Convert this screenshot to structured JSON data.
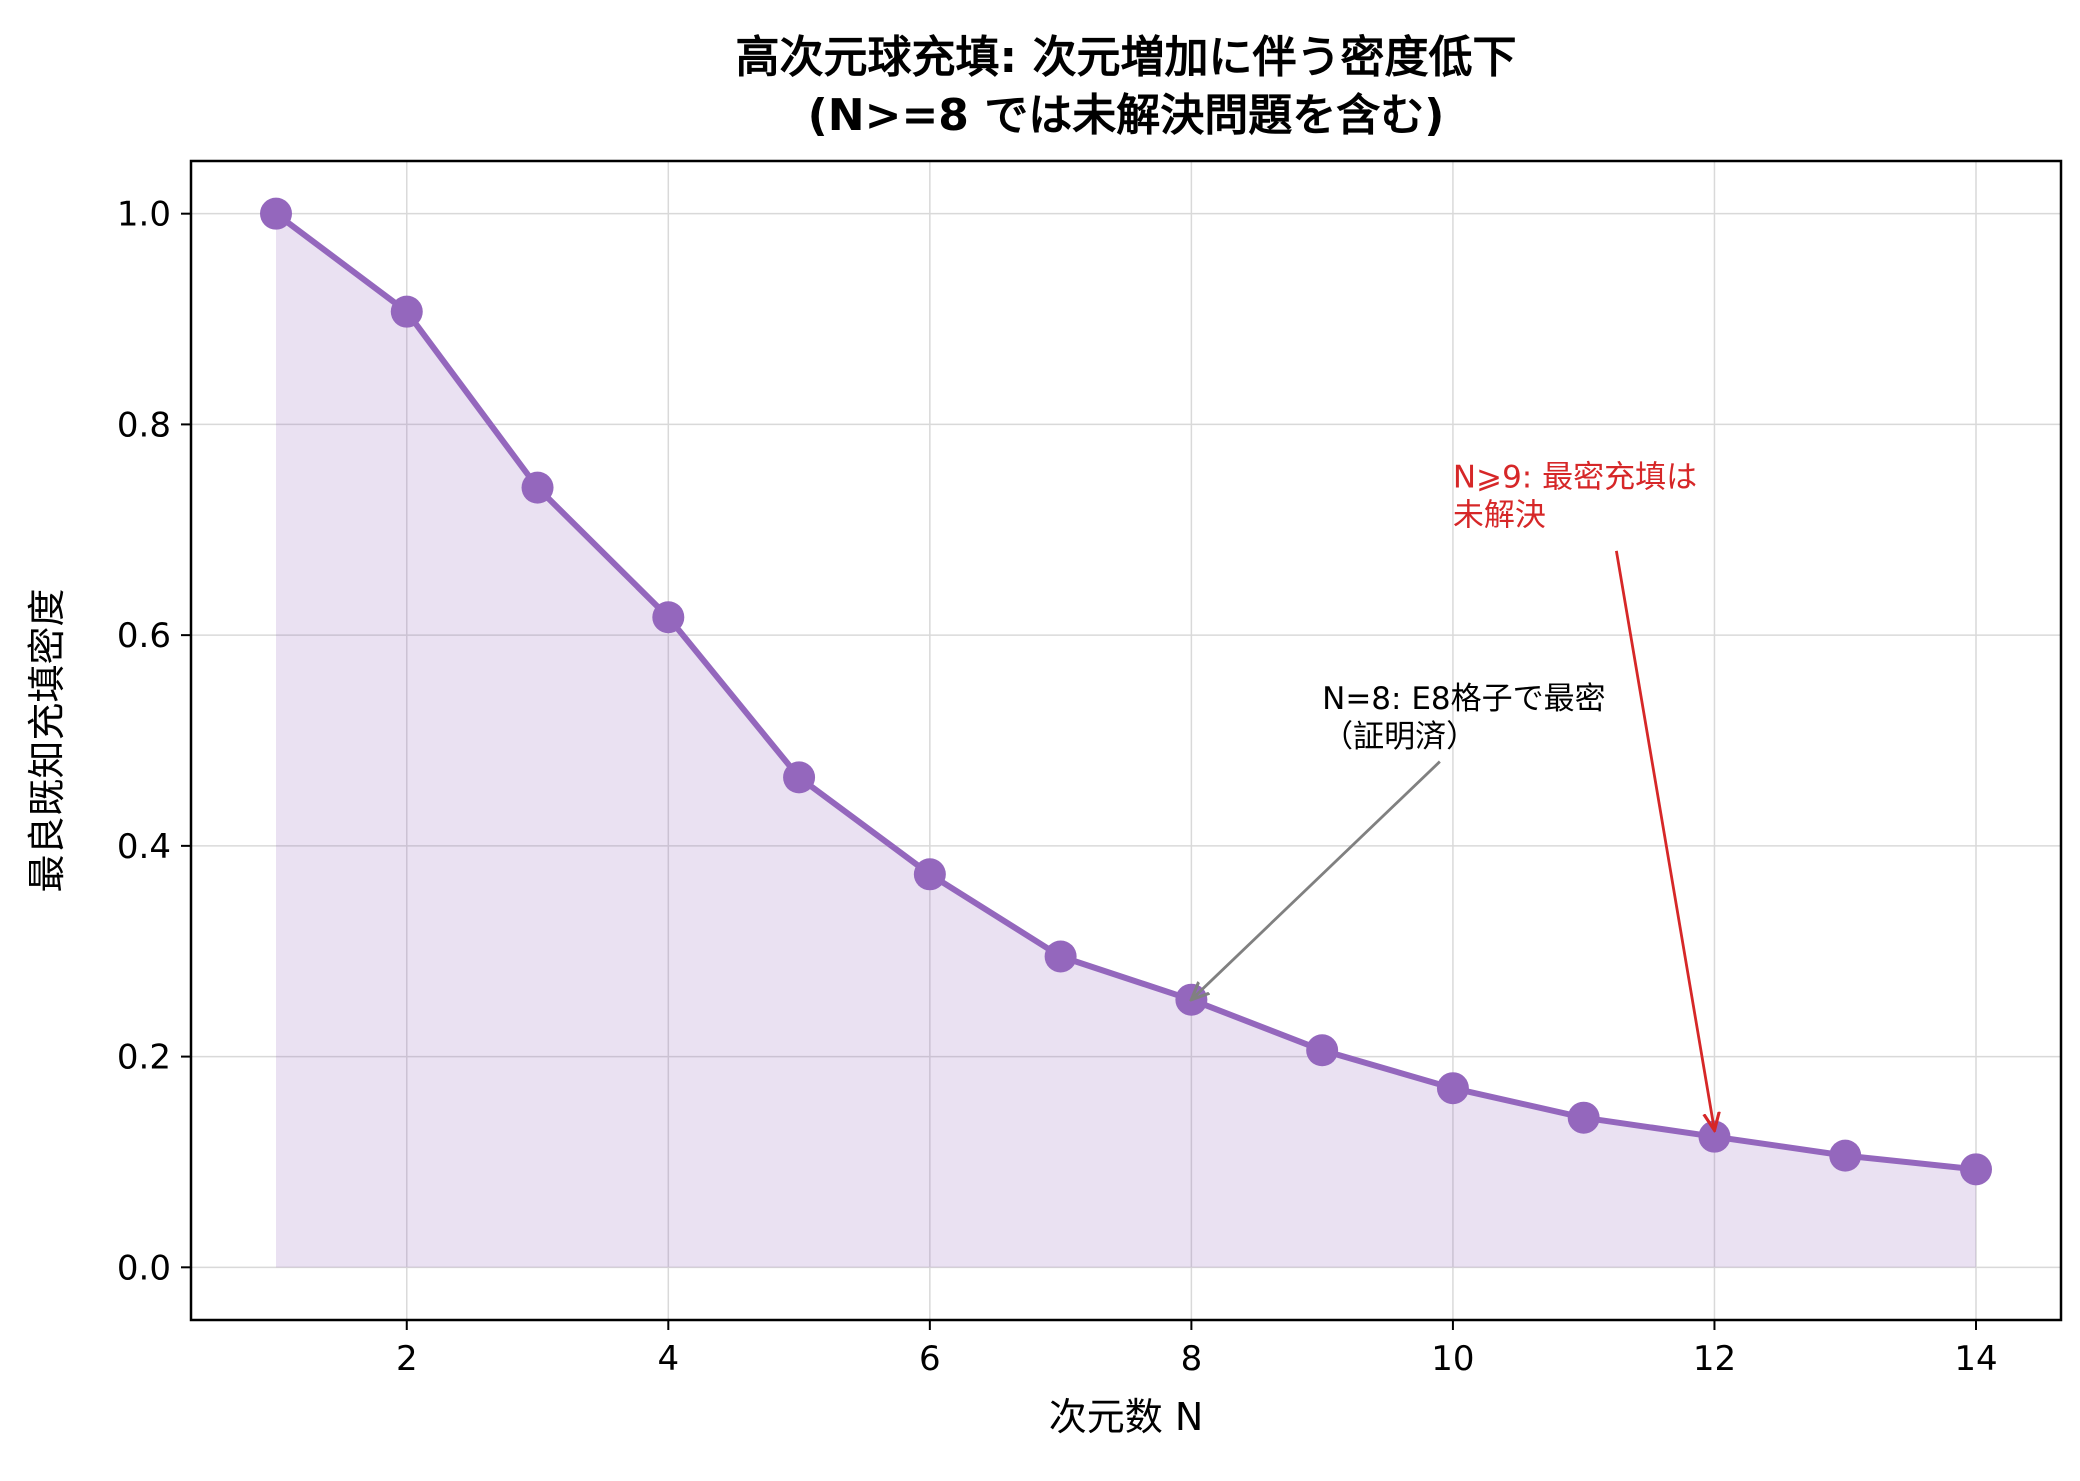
{
  "chart_data": {
    "type": "line",
    "title_line1": "高次元球充填: 次元増加に伴う密度低下",
    "title_line2": "(N>=8 では未解決問題を含む)",
    "xlabel": "次元数 N",
    "ylabel": "最良既知充填密度",
    "xlim": [
      0.35,
      14.65
    ],
    "ylim": [
      -0.05,
      1.05
    ],
    "x_ticks": [
      2,
      4,
      6,
      8,
      10,
      12,
      14
    ],
    "y_ticks": [
      0.0,
      0.2,
      0.4,
      0.6,
      0.8,
      1.0
    ],
    "y_tick_labels": [
      "0.0",
      "0.2",
      "0.4",
      "0.6",
      "0.8",
      "1.0"
    ],
    "grid": true,
    "series": [
      {
        "x": [
          1,
          2,
          3,
          4,
          5,
          6,
          7,
          8,
          9,
          10,
          11,
          12,
          13,
          14
        ],
        "values": [
          1.0,
          0.907,
          0.74,
          0.617,
          0.465,
          0.373,
          0.295,
          0.254,
          0.206,
          0.17,
          0.142,
          0.124,
          0.106,
          0.093
        ],
        "color": "#9467bd",
        "fill_below": true
      }
    ],
    "annotations": [
      {
        "lines": [
          "N=8: E8格子で最密",
          "（証明済）"
        ],
        "color": "#000000",
        "arrow_color": "#808080",
        "target": [
          8,
          0.254
        ],
        "text_pos": [
          9.0,
          0.53
        ],
        "arrow_start": [
          9.9,
          0.48
        ]
      },
      {
        "lines": [
          "N⩾9: 最密充填は",
          "未解決"
        ],
        "color": "#d62728",
        "arrow_color": "#d62728",
        "target": [
          12,
          0.13
        ],
        "text_pos": [
          10.0,
          0.74
        ],
        "arrow_start": [
          11.25,
          0.68
        ]
      }
    ]
  }
}
